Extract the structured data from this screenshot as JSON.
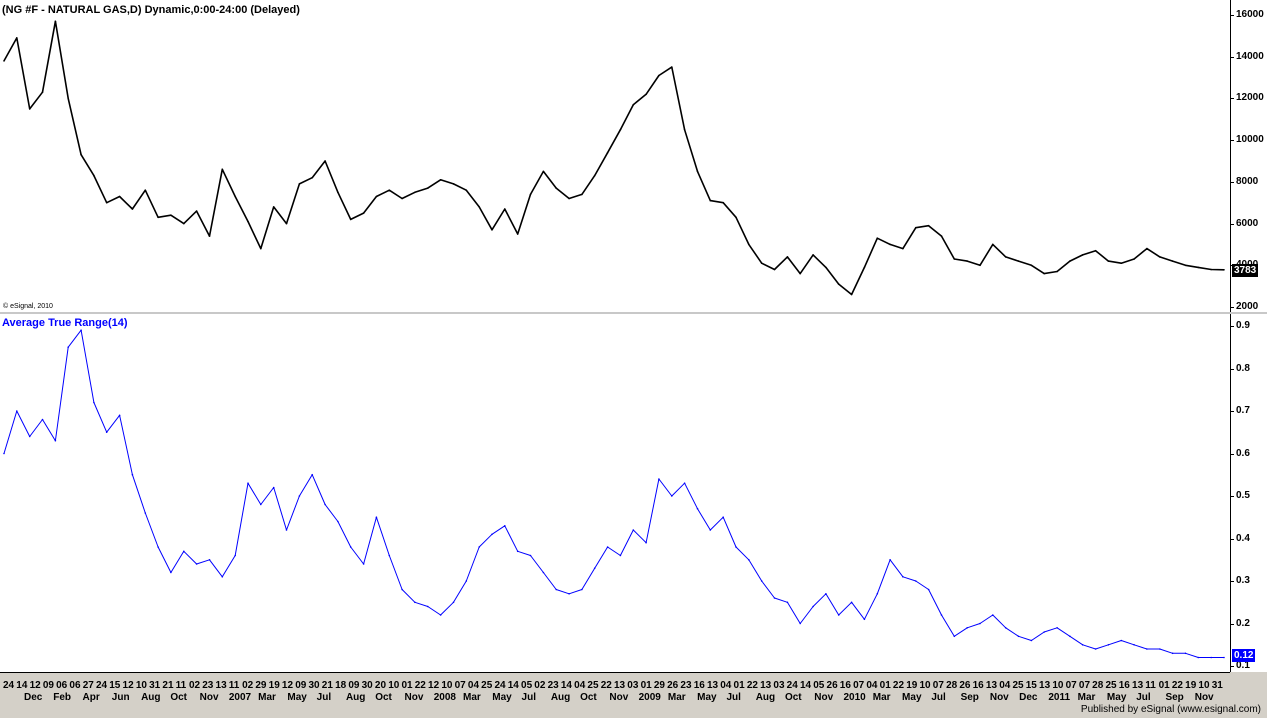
{
  "chart_data": [
    {
      "type": "line",
      "title": "(NG #F - NATURAL GAS,D) Dynamic,0:00-24:00 (Delayed)",
      "watermark": "© eSignal, 2010",
      "ylim": [
        2000,
        16000
      ],
      "yticks": [
        "16000",
        "14000",
        "12000",
        "10000",
        "8000",
        "6000",
        "4000",
        "2000"
      ],
      "last_value": "3783",
      "series": [
        {
          "values": [
            13800,
            14900,
            11500,
            12300,
            15700,
            12000,
            9300,
            8300,
            7000,
            7300,
            6700,
            7600,
            6300,
            6400,
            6000,
            6600,
            5400,
            8600,
            7300,
            6100,
            4800,
            6800,
            6000,
            7900,
            8200,
            9000,
            7500,
            6200,
            6500,
            7300,
            7600,
            7200,
            7500,
            7700,
            8100,
            7900,
            7600,
            6800,
            5700,
            6700,
            5500,
            7400,
            8500,
            7700,
            7200,
            7400,
            8300,
            9400,
            10500,
            11700,
            12200,
            13100,
            13500,
            10500,
            8500,
            7100,
            7000,
            6300,
            5000,
            4100,
            3800,
            4400,
            3600,
            4500,
            3900,
            3100,
            2600,
            3900,
            5300,
            5000,
            4800,
            5800,
            5900,
            5400,
            4300,
            4200,
            4000,
            5000,
            4400,
            4200,
            4000,
            3600,
            3700,
            4200,
            4500,
            4700,
            4200,
            4100,
            4300,
            4800,
            4400,
            4200,
            4000,
            3900,
            3800,
            3783
          ]
        }
      ],
      "xlabels": [
        "24",
        "14",
        "12",
        "09",
        "06",
        "06",
        "27",
        "24",
        "15",
        "12",
        "10",
        "31",
        "21",
        "11",
        "02",
        "23",
        "13",
        "11",
        "02",
        "29",
        "19",
        "12",
        "09",
        "30",
        "21",
        "18",
        "09",
        "30",
        "20",
        "10",
        "01",
        "22",
        "12",
        "10",
        "07",
        "04",
        "25",
        "24",
        "14",
        "05",
        "02",
        "23",
        "14",
        "04",
        "25",
        "22",
        "13",
        "03",
        "01",
        "29",
        "26",
        "23",
        "16",
        "13",
        "04",
        "01",
        "22",
        "13",
        "03",
        "24",
        "14",
        "05",
        "26",
        "16",
        "07",
        "04",
        "01",
        "22",
        "19",
        "10",
        "07",
        "28",
        "26",
        "16",
        "13",
        "04",
        "25",
        "15",
        "13",
        "10",
        "07",
        "07",
        "28",
        "25",
        "16",
        "13",
        "11",
        "01",
        "22",
        "19",
        "10",
        "31"
      ],
      "xmonths": [
        "Dec",
        "Feb",
        "Apr",
        "Jun",
        "Aug",
        "Oct",
        "Nov",
        "2007",
        "Mar",
        "May",
        "Jul",
        "Aug",
        "Oct",
        "Nov",
        "2008",
        "Mar",
        "May",
        "Jul",
        "Aug",
        "Oct",
        "Nov",
        "2009",
        "Mar",
        "May",
        "Jul",
        "Aug",
        "Oct",
        "Nov",
        "2010",
        "Mar",
        "May",
        "Jul",
        "Sep",
        "Nov",
        "Dec",
        "2011",
        "Mar",
        "May",
        "Jul",
        "Sep",
        "Nov"
      ]
    },
    {
      "type": "line",
      "title": "Average True Range(14)",
      "ylim": [
        0.07,
        0.95
      ],
      "yticks": [
        "0.9",
        "0.8",
        "0.7",
        "0.6",
        "0.5",
        "0.4",
        "0.3",
        "0.2",
        "0.1"
      ],
      "last_value": "0.12",
      "series": [
        {
          "values": [
            0.6,
            0.7,
            0.64,
            0.68,
            0.63,
            0.85,
            0.89,
            0.72,
            0.65,
            0.69,
            0.55,
            0.46,
            0.38,
            0.32,
            0.37,
            0.34,
            0.35,
            0.31,
            0.36,
            0.53,
            0.48,
            0.52,
            0.42,
            0.5,
            0.55,
            0.48,
            0.44,
            0.38,
            0.34,
            0.45,
            0.36,
            0.28,
            0.25,
            0.24,
            0.22,
            0.25,
            0.3,
            0.38,
            0.41,
            0.43,
            0.37,
            0.36,
            0.32,
            0.28,
            0.27,
            0.28,
            0.33,
            0.38,
            0.36,
            0.42,
            0.39,
            0.54,
            0.5,
            0.53,
            0.47,
            0.42,
            0.45,
            0.38,
            0.35,
            0.3,
            0.26,
            0.25,
            0.2,
            0.24,
            0.27,
            0.22,
            0.25,
            0.21,
            0.27,
            0.35,
            0.31,
            0.3,
            0.28,
            0.22,
            0.17,
            0.19,
            0.2,
            0.22,
            0.19,
            0.17,
            0.16,
            0.18,
            0.19,
            0.17,
            0.15,
            0.14,
            0.15,
            0.16,
            0.15,
            0.14,
            0.14,
            0.13,
            0.13,
            0.12,
            0.12,
            0.12
          ]
        }
      ]
    }
  ],
  "theme": {
    "price_color": "#000000",
    "atr_color": "#0000ff",
    "tag_fg": "#ffffff"
  },
  "footer": "Published by eSignal (www.esignal.com)"
}
